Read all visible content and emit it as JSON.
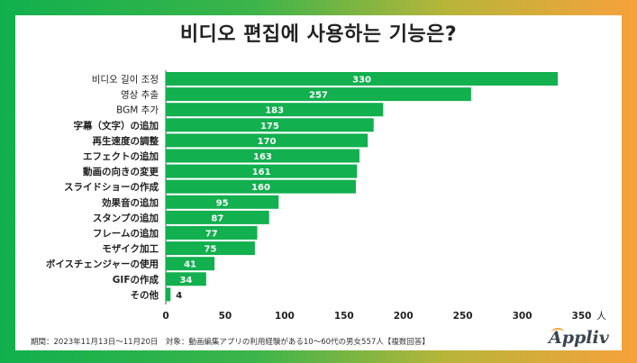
{
  "title": "비디오 편집에 사용하는 기능은?",
  "chart_data": {
    "type": "bar",
    "orientation": "horizontal",
    "categories": [
      "비디오 길이 조정",
      "영상 추출",
      "BGM 추가",
      "字幕（文字）の追加",
      "再生速度の調整",
      "エフェクトの追加",
      "動画の向きの変更",
      "スライドショーの作成",
      "効果音の追加",
      "スタンプの追加",
      "フレームの追加",
      "モザイク加工",
      "ボイスチェンジャーの使用",
      "GIFの作成",
      "その他"
    ],
    "values": [
      330,
      257,
      183,
      175,
      170,
      163,
      161,
      160,
      95,
      87,
      77,
      75,
      41,
      34,
      4
    ],
    "xlim": [
      0,
      350
    ],
    "xticks": [
      "0",
      "50",
      "100",
      "150",
      "200",
      "250",
      "300",
      "350"
    ],
    "xunit": "人",
    "bar_color": "#12b04e",
    "label_color_inside": "#ffffff",
    "label_color_outside": "#222222"
  },
  "footnote": "期間：2023年11月13日〜11月20日　対象：動画編集アプリの利用経験がある10〜60代の男女557人【複数回答】",
  "logo": "Appliv"
}
